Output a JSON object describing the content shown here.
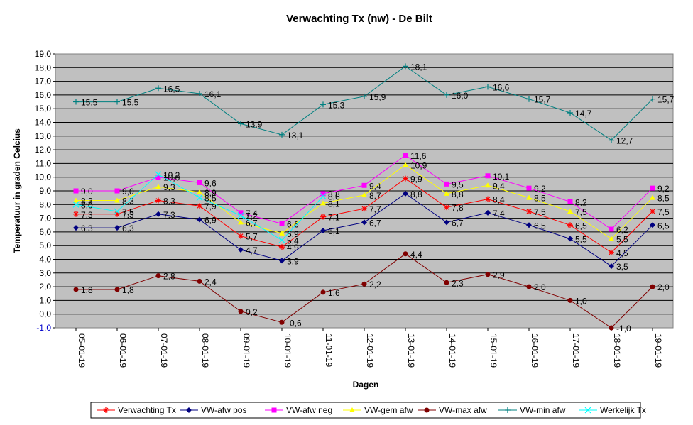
{
  "chart_data": {
    "type": "line",
    "title": "Verwachting Tx (nw) - De Bilt",
    "xlabel": "Dagen",
    "ylabel": "Temperatuur in graden Celcius",
    "ylim": [
      -1,
      19
    ],
    "ystep": 1,
    "ytick_labels": [
      "-1,0",
      "0,0",
      "1,0",
      "2,0",
      "3,0",
      "4,0",
      "5,0",
      "6,0",
      "7,0",
      "8,0",
      "9,0",
      "10,0",
      "11,0",
      "12,0",
      "13,0",
      "14,0",
      "15,0",
      "16,0",
      "17,0",
      "18,0",
      "19,0"
    ],
    "grid": true,
    "legend_position": "bottom",
    "plot_background": "#c0c0c0",
    "categories": [
      "05-01-19",
      "06-01-19",
      "07-01-19",
      "08-01-19",
      "09-01-19",
      "10-01-19",
      "11-01-19",
      "12-01-19",
      "13-01-19",
      "14-01-19",
      "15-01-19",
      "16-01-19",
      "17-01-19",
      "18-01-19",
      "19-01-19"
    ],
    "series": [
      {
        "name": "Verwachting Tx",
        "color": "#ff0000",
        "marker": "star",
        "values": [
          7.3,
          7.3,
          8.3,
          7.9,
          5.7,
          4.9,
          7.1,
          7.7,
          9.9,
          7.8,
          8.4,
          7.5,
          6.5,
          4.5,
          7.5
        ],
        "labels": [
          "7,3",
          "7,3",
          "8,3",
          "7,9",
          "5,7",
          "4,9",
          "7,1",
          "7,7",
          "9,9",
          "7,8",
          "8,4",
          "7,5",
          "6,5",
          "4,5",
          "7,5"
        ]
      },
      {
        "name": "VW-afw pos",
        "color": "#000080",
        "marker": "diamond",
        "values": [
          6.3,
          6.3,
          7.3,
          6.9,
          4.7,
          3.9,
          6.1,
          6.7,
          8.8,
          6.7,
          7.4,
          6.5,
          5.5,
          3.5,
          6.5
        ],
        "labels": [
          "6,3",
          "6,3",
          "7,3",
          "6,9",
          "4,7",
          "3,9",
          "6,1",
          "6,7",
          "8,8",
          "6,7",
          "7,4",
          "6,5",
          "5,5",
          "3,5",
          "6,5"
        ]
      },
      {
        "name": "VW-afw neg",
        "color": "#ff00ff",
        "marker": "square",
        "values": [
          9.0,
          9.0,
          10.0,
          9.6,
          7.4,
          6.6,
          8.8,
          9.4,
          11.6,
          9.5,
          10.1,
          9.2,
          8.2,
          6.2,
          9.2
        ],
        "labels": [
          "9,0",
          "9,0",
          "10,0",
          "9,6",
          "7,4",
          "6,6",
          "8,8",
          "9,4",
          "11,6",
          "9,5",
          "10,1",
          "9,2",
          "8,2",
          "6,2",
          "9,2"
        ]
      },
      {
        "name": "VW-gem afw",
        "color": "#ffff00",
        "marker": "triangle",
        "values": [
          8.3,
          8.3,
          9.3,
          8.9,
          6.7,
          5.9,
          8.1,
          8.7,
          10.9,
          8.8,
          9.4,
          8.5,
          7.5,
          5.5,
          8.5
        ],
        "labels": [
          "8,3",
          "8,3",
          "9,3",
          "8,9",
          "6,7",
          "5,9",
          "8,1",
          "8,7",
          "10,9",
          "8,8",
          "9,4",
          "8,5",
          "7,5",
          "5,5",
          "8,5"
        ]
      },
      {
        "name": "VW-max afw",
        "color": "#800000",
        "marker": "circle",
        "values": [
          1.8,
          1.8,
          2.8,
          2.4,
          0.2,
          -0.6,
          1.6,
          2.2,
          4.4,
          2.3,
          2.9,
          2.0,
          1.0,
          -1.0,
          2.0
        ],
        "labels": [
          "1,8",
          "1,8",
          "2,8",
          "2,4",
          "0,2",
          "-0,6",
          "1,6",
          "2,2",
          "4,4",
          "2,3",
          "2,9",
          "2,0",
          "1,0",
          "-1,0",
          "2,0"
        ]
      },
      {
        "name": "VW-min afw",
        "color": "#008080",
        "marker": "plus",
        "values": [
          15.5,
          15.5,
          16.5,
          16.1,
          13.9,
          13.1,
          15.3,
          15.9,
          18.1,
          16.0,
          16.6,
          15.7,
          14.7,
          12.7,
          15.7
        ],
        "labels": [
          "15,5",
          "15,5",
          "16,5",
          "16,1",
          "13,9",
          "13,1",
          "15,3",
          "15,9",
          "18,1",
          "16,0",
          "16,6",
          "15,7",
          "14,7",
          "12,7",
          "15,7"
        ]
      },
      {
        "name": "Werkelijk Tx",
        "color": "#00ffff",
        "marker": "x",
        "values": [
          8.0,
          7.5,
          10.2,
          8.5,
          7.2,
          5.4,
          8.6,
          null,
          null,
          null,
          null,
          null,
          null,
          null,
          null
        ],
        "labels": [
          "8,0",
          "7,5",
          "10,2",
          "8,5",
          "7,2",
          "5,4",
          "8,6",
          null,
          null,
          null,
          null,
          null,
          null,
          null,
          null
        ]
      }
    ]
  }
}
